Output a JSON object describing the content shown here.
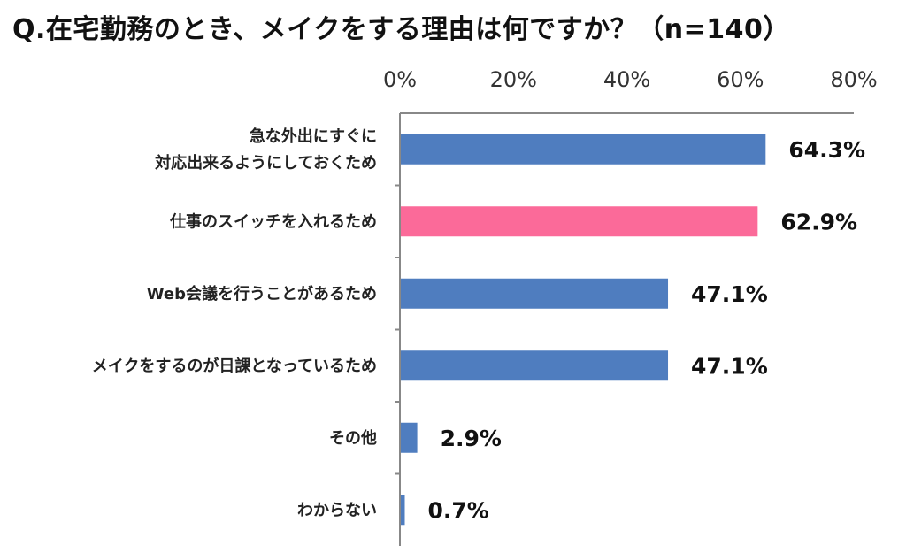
{
  "chart_data": {
    "type": "bar",
    "orientation": "horizontal",
    "title": "Q.在宅勤務のとき、メイクをする理由は何ですか？（n=140）",
    "categories": [
      [
        "急な外出にすぐに",
        "対応出来るようにしておくため"
      ],
      [
        "仕事のスイッチを入れるため"
      ],
      [
        "Web会議を行うことがあるため"
      ],
      [
        "メイクをするのが日課となっているため"
      ],
      [
        "その他"
      ],
      [
        "わからない"
      ]
    ],
    "values": [
      64.3,
      62.9,
      47.1,
      47.1,
      2.9,
      0.7
    ],
    "value_labels": [
      "64.3%",
      "62.9%",
      "47.1%",
      "47.1%",
      "2.9%",
      "0.7%"
    ],
    "xlim": [
      0,
      80
    ],
    "xticks": [
      0,
      20,
      40,
      60,
      80
    ],
    "xtick_labels": [
      "0%",
      "20%",
      "40%",
      "60%",
      "80%"
    ],
    "axis_position": "top",
    "grid": false,
    "colors": {
      "default_bar": "#4f7dbf",
      "highlight_bar": "#fb6a99",
      "axis": "#888888"
    },
    "highlight_index": 1
  }
}
